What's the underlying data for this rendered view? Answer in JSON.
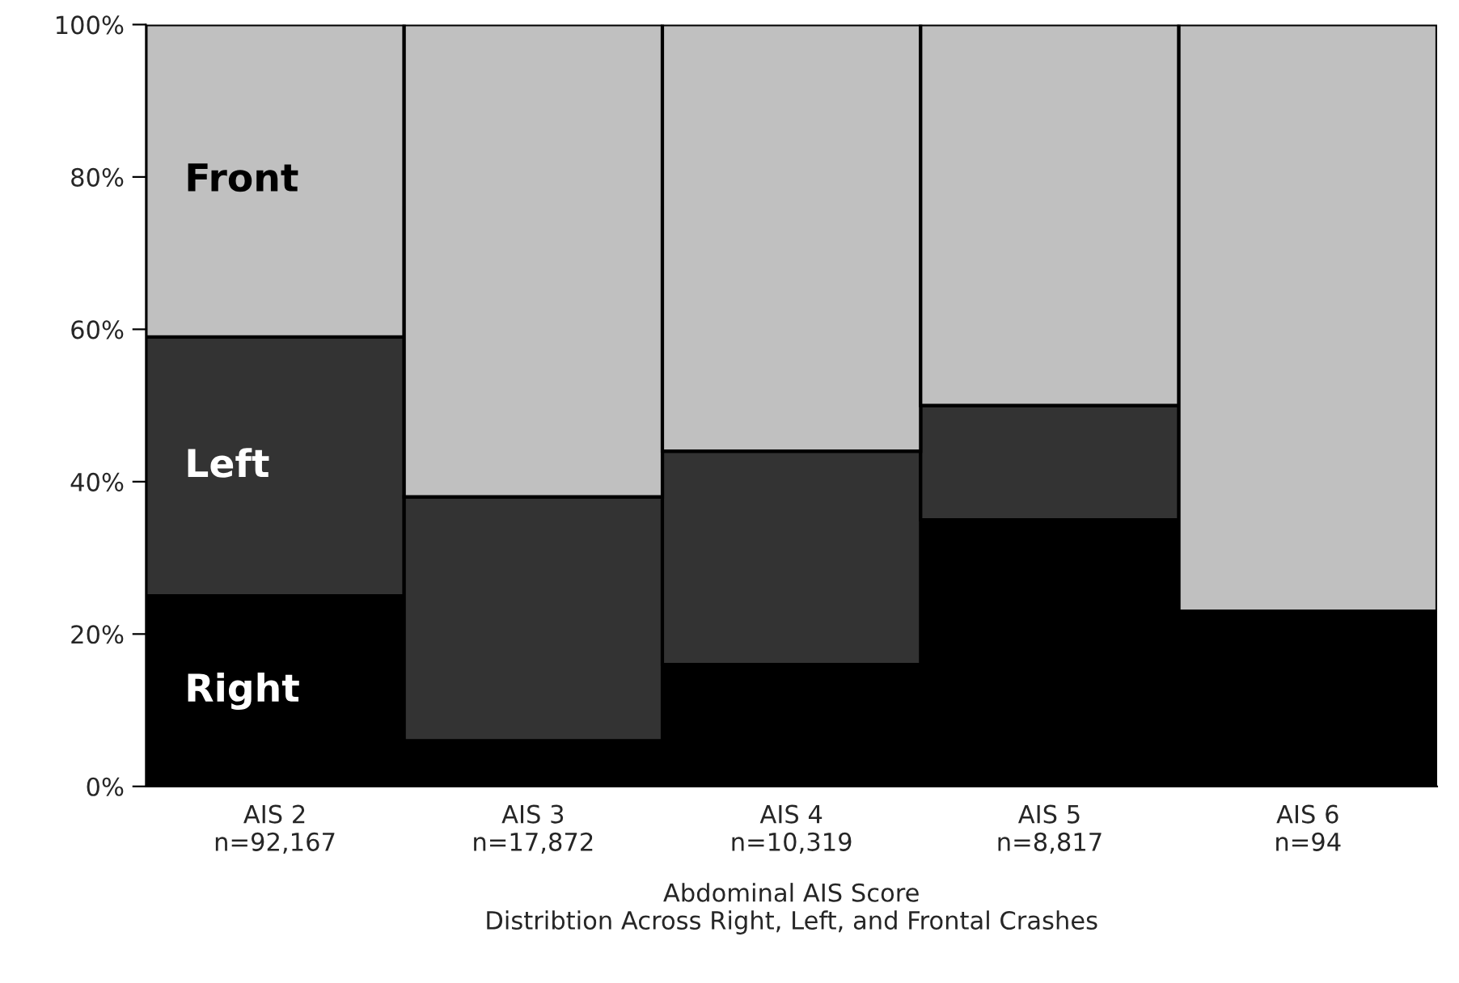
{
  "chart_data": {
    "type": "bar",
    "stacked": true,
    "xlabel": "Abdominal AIS Score\nDistribtion Across Right, Left, and Frontal Crashes",
    "categories": [
      "AIS 2\nn=92,167",
      "AIS 3\nn=17,872",
      "AIS 4\nn=10,319",
      "AIS 5\nn=8,817",
      "AIS 6\nn=94"
    ],
    "series": [
      {
        "name": "Right",
        "color": "#000000",
        "values": [
          25,
          6,
          16,
          35,
          23
        ]
      },
      {
        "name": "Left",
        "color": "#333333",
        "values": [
          34,
          32,
          28,
          15,
          0
        ]
      },
      {
        "name": "Front",
        "color": "#c0c0c0",
        "values": [
          41,
          62,
          56,
          50,
          77
        ]
      }
    ],
    "ylim": [
      0,
      100
    ],
    "yticks": [
      {
        "value": 0,
        "label": "0%"
      },
      {
        "value": 20,
        "label": "20%"
      },
      {
        "value": 40,
        "label": "40%"
      },
      {
        "value": 60,
        "label": "60%"
      },
      {
        "value": 80,
        "label": "80%"
      },
      {
        "value": 100,
        "label": "100%"
      }
    ],
    "grid": false,
    "legend": false
  }
}
